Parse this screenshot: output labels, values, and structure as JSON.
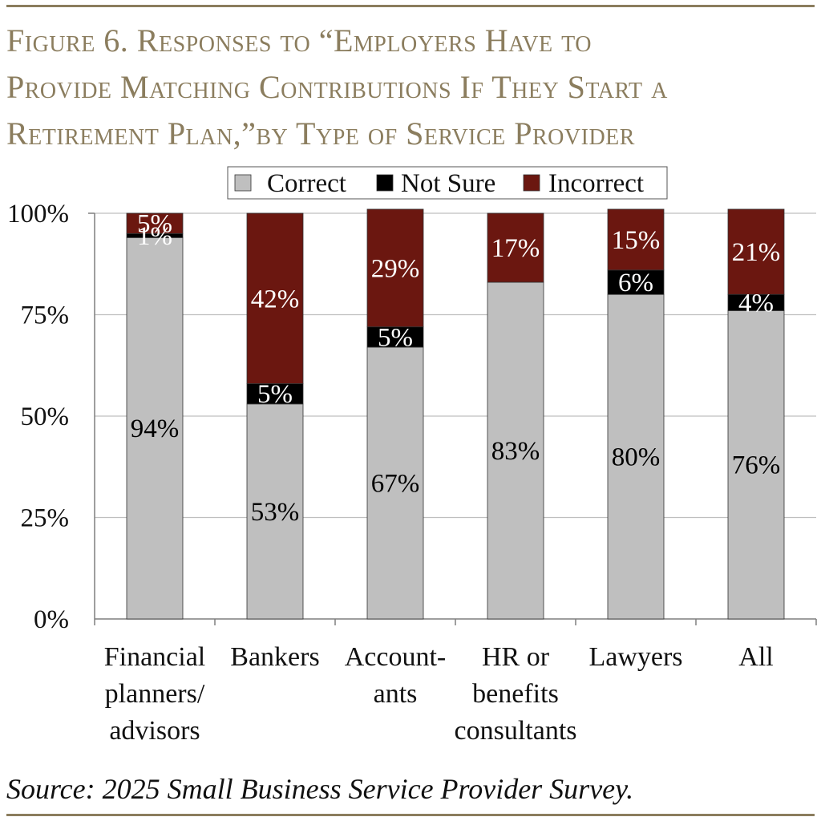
{
  "title_lines": [
    "Figure 6. Responses to “Employers Have to",
    "Provide Matching Contributions If They Start a",
    "Retirement Plan,”by Type of Service Provider"
  ],
  "source": "Source: 2025 Small Business Service Provider Survey.",
  "colors": {
    "accent": "#8B7D5E",
    "correct": "#BFBFBF",
    "not_sure": "#000000",
    "incorrect": "#6B1710",
    "grid": "#BFBFBF"
  },
  "chart_data": {
    "type": "bar",
    "stacked": true,
    "categories": [
      [
        "Financial",
        "planners/",
        "advisors"
      ],
      [
        "Bankers"
      ],
      [
        "Account-",
        "ants"
      ],
      [
        "HR or",
        "benefits",
        "consultants"
      ],
      [
        "Lawyers"
      ],
      [
        "All"
      ]
    ],
    "series": [
      {
        "name": "Correct",
        "values": [
          94,
          53,
          67,
          83,
          80,
          76
        ],
        "labels": [
          "94%",
          "53%",
          "67%",
          "83%",
          "80%",
          "76%"
        ]
      },
      {
        "name": "Not Sure",
        "values": [
          1,
          5,
          5,
          0,
          6,
          4
        ],
        "labels": [
          "1%",
          "5%",
          "5%",
          "",
          "6%",
          "4%"
        ]
      },
      {
        "name": "Incorrect",
        "values": [
          5,
          42,
          29,
          17,
          15,
          21
        ],
        "labels": [
          "5%",
          "42%",
          "29%",
          "17%",
          "15%",
          "21%"
        ]
      }
    ],
    "ylim": [
      0,
      100
    ],
    "yticks": [
      0,
      25,
      50,
      75,
      100
    ],
    "ytick_labels": [
      "0%",
      "25%",
      "50%",
      "75%",
      "100%"
    ],
    "legend": "top-center",
    "grid": true
  }
}
